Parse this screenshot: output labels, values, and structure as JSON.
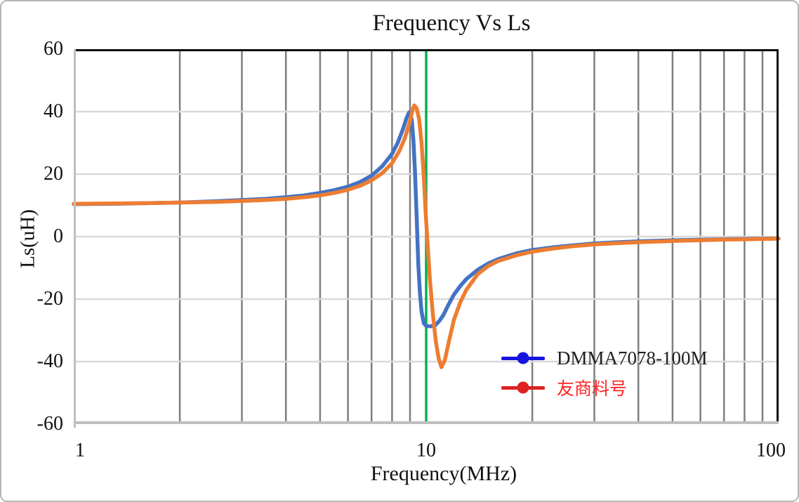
{
  "chart_data": {
    "type": "line",
    "title": "Frequency Vs Ls",
    "xlabel": "Frequency(MHz)",
    "ylabel": "Ls(uH)",
    "x_scale": "log",
    "xlim": [
      1,
      100
    ],
    "ylim": [
      -60,
      60
    ],
    "x_ticks": [
      1,
      10,
      100
    ],
    "y_ticks": [
      60,
      40,
      20,
      0,
      -20,
      -40,
      -60
    ],
    "x_gridlines": [
      2,
      3,
      4,
      5,
      6,
      7,
      8,
      9,
      20,
      30,
      40,
      50,
      60,
      70,
      80,
      90
    ],
    "y_gridlines": [
      40,
      20,
      0,
      -20,
      -40
    ],
    "grid": true,
    "legend_position": "inside bottom-right",
    "colors": {
      "x_grid": "#7f7f7f",
      "y_grid": "#d9d9d9",
      "frame_dark": "#0d0d0d",
      "frame_light": "#bfbfbf",
      "reference_green": "#00B050"
    },
    "reference_line": {
      "axis": "x",
      "value": 10,
      "color": "#00B050"
    },
    "series": [
      {
        "name": "DMMA7078-100M",
        "color": "#4472C4",
        "legend_marker_color": "#1515E0",
        "label_color": "#1f1f1f",
        "points": [
          [
            1,
            10.4
          ],
          [
            1.3,
            10.5
          ],
          [
            1.6,
            10.7
          ],
          [
            2,
            10.9
          ],
          [
            2.5,
            11.3
          ],
          [
            3,
            11.7
          ],
          [
            3.5,
            12.1
          ],
          [
            4,
            12.6
          ],
          [
            4.5,
            13.2
          ],
          [
            5,
            14.0
          ],
          [
            5.5,
            14.9
          ],
          [
            6,
            16.0
          ],
          [
            6.5,
            17.5
          ],
          [
            7,
            19.5
          ],
          [
            7.5,
            22.5
          ],
          [
            8,
            26.5
          ],
          [
            8.3,
            30.0
          ],
          [
            8.6,
            34.5
          ],
          [
            8.8,
            38.0
          ],
          [
            8.95,
            39.8
          ],
          [
            9.1,
            37.5
          ],
          [
            9.2,
            31.0
          ],
          [
            9.3,
            20.0
          ],
          [
            9.4,
            6.0
          ],
          [
            9.5,
            -9.0
          ],
          [
            9.6,
            -18.0
          ],
          [
            9.7,
            -24.0
          ],
          [
            9.85,
            -27.8
          ],
          [
            10,
            -28.6
          ],
          [
            10.3,
            -28.7
          ],
          [
            10.6,
            -28.4
          ],
          [
            10.9,
            -27.0
          ],
          [
            11.2,
            -25.0
          ],
          [
            11.6,
            -21.5
          ],
          [
            12,
            -18.5
          ],
          [
            12.5,
            -15.8
          ],
          [
            13,
            -13.6
          ],
          [
            14,
            -10.6
          ],
          [
            15,
            -8.6
          ],
          [
            16,
            -7.2
          ],
          [
            18,
            -5.4
          ],
          [
            20,
            -4.3
          ],
          [
            23,
            -3.4
          ],
          [
            26,
            -2.8
          ],
          [
            30,
            -2.2
          ],
          [
            35,
            -1.8
          ],
          [
            40,
            -1.5
          ],
          [
            50,
            -1.2
          ],
          [
            60,
            -1.0
          ],
          [
            70,
            -0.85
          ],
          [
            85,
            -0.7
          ],
          [
            100,
            -0.6
          ]
        ]
      },
      {
        "name": "友商料号",
        "color": "#ED7D31",
        "legend_marker_color": "#DD2222",
        "label_color": "#FF2424",
        "points": [
          [
            1,
            10.5
          ],
          [
            1.3,
            10.6
          ],
          [
            1.6,
            10.7
          ],
          [
            2,
            10.9
          ],
          [
            2.5,
            11.1
          ],
          [
            3,
            11.4
          ],
          [
            3.5,
            11.7
          ],
          [
            4,
            12.1
          ],
          [
            4.5,
            12.6
          ],
          [
            5,
            13.2
          ],
          [
            5.5,
            14.0
          ],
          [
            6,
            15.0
          ],
          [
            6.5,
            16.3
          ],
          [
            7,
            18.0
          ],
          [
            7.5,
            20.3
          ],
          [
            8,
            23.5
          ],
          [
            8.4,
            27.5
          ],
          [
            8.7,
            31.5
          ],
          [
            9,
            37.0
          ],
          [
            9.15,
            40.5
          ],
          [
            9.25,
            42.0
          ],
          [
            9.4,
            41.0
          ],
          [
            9.55,
            37.5
          ],
          [
            9.7,
            30.0
          ],
          [
            9.85,
            19.0
          ],
          [
            9.95,
            9.0
          ],
          [
            10.1,
            -3.0
          ],
          [
            10.25,
            -14.0
          ],
          [
            10.45,
            -25.0
          ],
          [
            10.65,
            -33.5
          ],
          [
            10.85,
            -39.0
          ],
          [
            11.05,
            -41.8
          ],
          [
            11.3,
            -39.5
          ],
          [
            11.6,
            -33.5
          ],
          [
            12,
            -26.5
          ],
          [
            12.5,
            -21.0
          ],
          [
            13,
            -17.0
          ],
          [
            14,
            -12.0
          ],
          [
            15,
            -9.4
          ],
          [
            16,
            -7.8
          ],
          [
            18,
            -6.0
          ],
          [
            20,
            -4.8
          ],
          [
            23,
            -3.8
          ],
          [
            26,
            -3.1
          ],
          [
            30,
            -2.5
          ],
          [
            35,
            -2.1
          ],
          [
            40,
            -1.8
          ],
          [
            50,
            -1.4
          ],
          [
            60,
            -1.15
          ],
          [
            70,
            -0.95
          ],
          [
            85,
            -0.8
          ],
          [
            100,
            -0.65
          ]
        ]
      }
    ]
  }
}
